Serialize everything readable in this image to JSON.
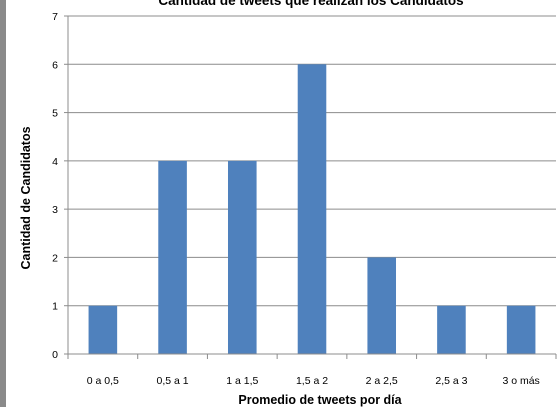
{
  "chart_data": {
    "type": "bar",
    "title": "Cantidad de tweets que realizan los Candidatos",
    "xlabel": "Promedio de tweets por día",
    "ylabel": "Cantidad de Candidatos",
    "categories": [
      "0 a 0,5",
      "0,5 a 1",
      "1 a 1,5",
      "1,5 a 2",
      "2 a 2,5",
      "2,5 a 3",
      "3 o más"
    ],
    "values": [
      1,
      4,
      4,
      6,
      2,
      1,
      1
    ],
    "ylim": [
      0,
      7
    ],
    "yticks": [
      "0",
      "1",
      "2",
      "3",
      "4",
      "5",
      "6",
      "7"
    ],
    "grid": true,
    "bar_color": "#4f81bd",
    "grid_color": "#8c8c8c",
    "legend": "none"
  }
}
